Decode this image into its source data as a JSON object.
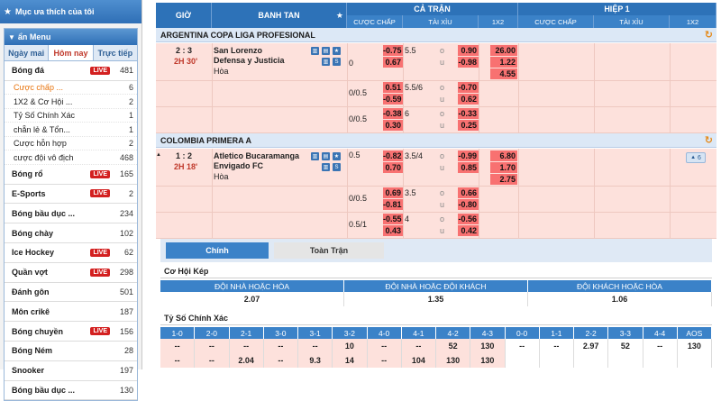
{
  "sidebar": {
    "favorites": "Mục ưa thích của tôi",
    "menu_title": "ẩn Menu",
    "tabs": [
      "Ngày mai",
      "Hôm nay",
      "Trực tiếp"
    ],
    "live_label": "LIVE",
    "football": {
      "name": "Bóng đá",
      "count": "481"
    },
    "subs": [
      {
        "name": "Cược chấp ...",
        "count": "6"
      },
      {
        "name": "1X2 & Cơ Hội ...",
        "count": "2"
      },
      {
        "name": "Tỷ Số Chính Xác",
        "count": "1"
      },
      {
        "name": "chẵn lẻ & Tổn...",
        "count": "1"
      },
      {
        "name": "Cược hỗn hợp",
        "count": "2"
      },
      {
        "name": "cược đội vô địch",
        "count": "468"
      }
    ],
    "sports": [
      {
        "name": "Bóng rổ",
        "live": true,
        "count": "165"
      },
      {
        "name": "E-Sports",
        "live": true,
        "count": "2"
      },
      {
        "name": "Bóng bầu dục ...",
        "live": false,
        "count": "234"
      },
      {
        "name": "Bóng chày",
        "live": false,
        "count": "102"
      },
      {
        "name": "Ice Hockey",
        "live": true,
        "count": "62"
      },
      {
        "name": "Quần vợt",
        "live": true,
        "count": "298"
      },
      {
        "name": "Đánh gôn",
        "live": false,
        "count": "501"
      },
      {
        "name": "Môn crikê",
        "live": false,
        "count": "187"
      },
      {
        "name": "Bóng chuyền",
        "live": true,
        "count": "156"
      },
      {
        "name": "Bóng Ném",
        "live": false,
        "count": "28"
      },
      {
        "name": "Snooker",
        "live": false,
        "count": "197"
      },
      {
        "name": "Bóng bầu dục ...",
        "live": false,
        "count": "130"
      }
    ]
  },
  "header": {
    "gio": "GIỜ",
    "banh_tan": "BANH TAN",
    "ca_tran": "CẢ TRẬN",
    "hiep1": "HIỆP 1",
    "cuoc_chap": "CƯỢC CHẤP",
    "tai_xiu": "TÀI XỈU",
    "x12": "1X2"
  },
  "leagues": [
    {
      "name": "ARGENTINA COPA LIGA PROFESIONAL",
      "score": "2 : 3",
      "time": "2H 30'",
      "home": "San Lorenzo",
      "away": "Defensa y Justicia",
      "draw": "Hòa",
      "rows": [
        {
          "hc": "",
          "h1": "-0.75",
          "h2": "0.67",
          "line": "5.5",
          "o": "o",
          "u": "u",
          "tx1": "0.90",
          "tx2": "-0.98",
          "x1": "26.00",
          "x2": "1.22",
          "x3": "4.55"
        },
        {
          "hc": "0/0.5",
          "h1": "0.51",
          "h2": "-0.59",
          "line": "5.5/6",
          "o": "o",
          "u": "u",
          "tx1": "-0.70",
          "tx2": "0.62"
        },
        {
          "hc": "0/0.5",
          "h1": "-0.38",
          "h2": "0.30",
          "line": "6",
          "o": "o",
          "u": "u",
          "tx1": "-0.33",
          "tx2": "0.25"
        }
      ],
      "hc0": "0"
    },
    {
      "name": "COLOMBIA PRIMERA A",
      "score": "1 : 2",
      "time": "2H 18'",
      "home": "Atletico Bucaramanga",
      "away": "Envigado FC",
      "draw": "Hòa",
      "more": "6",
      "rows": [
        {
          "hc": "0.5",
          "h1": "-0.82",
          "h2": "0.70",
          "line": "3.5/4",
          "o": "o",
          "u": "u",
          "tx1": "-0.99",
          "tx2": "0.85",
          "x1": "6.80",
          "x2": "1.70",
          "x3": "2.75"
        },
        {
          "hc": "0/0.5",
          "h1": "0.69",
          "h2": "-0.81",
          "line": "3.5",
          "o": "o",
          "u": "u",
          "tx1": "0.66",
          "tx2": "-0.80"
        },
        {
          "hc": "0.5/1",
          "h1": "-0.55",
          "h2": "0.43",
          "line": "4",
          "o": "o",
          "u": "u",
          "tx1": "-0.56",
          "tx2": "0.42"
        }
      ]
    }
  ],
  "bottom": {
    "tabs": [
      "Chính",
      "Toàn Trận"
    ],
    "dc_title": "Cơ Hội Kép",
    "dc_heads": [
      "ĐỘI NHÀ HOẶC HÒA",
      "ĐỘI NHÀ HOẶC ĐỘI KHÁCH",
      "ĐỘI KHÁCH HOẶC HÒA"
    ],
    "dc_vals": [
      "2.07",
      "1.35",
      "1.06"
    ],
    "cs_title": "Tỷ Số Chính Xác",
    "cs_heads": [
      "1-0",
      "2-0",
      "2-1",
      "3-0",
      "3-1",
      "3-2",
      "4-0",
      "4-1",
      "4-2",
      "4-3",
      "0-0",
      "1-1",
      "2-2",
      "3-3",
      "4-4",
      "AOS"
    ],
    "cs_r1": [
      "--",
      "--",
      "--",
      "--",
      "--",
      "10",
      "--",
      "--",
      "52",
      "130",
      "--",
      "--",
      "2.97",
      "52",
      "--",
      "130"
    ],
    "cs_r2": [
      "--",
      "--",
      "2.04",
      "--",
      "9.3",
      "14",
      "--",
      "104",
      "130",
      "130",
      "",
      "",
      "",
      "",
      "",
      ""
    ]
  }
}
